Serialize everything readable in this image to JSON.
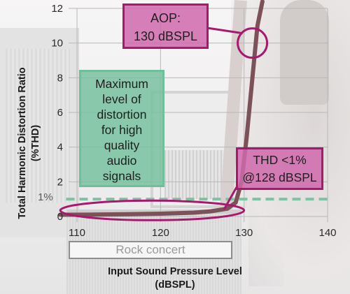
{
  "chart_data": {
    "type": "line",
    "xlabel": "Input Sound Pressure Level (dBSPL)",
    "xlabel_lines": [
      "Input Sound Pressure Level",
      "(dBSPL)"
    ],
    "ylabel": "Total Harmonic Distortion Ratio (%THD)",
    "ylabel_lines": [
      "Total Harmonic Distortion Ratio",
      "(%THD)"
    ],
    "xlim": [
      110,
      140
    ],
    "ylim": [
      0,
      12
    ],
    "x_ticks": [
      110,
      120,
      130,
      140
    ],
    "y_ticks": [
      0,
      2,
      4,
      6,
      8,
      10,
      12
    ],
    "grid": true,
    "series": [
      {
        "x": [
          108,
          112,
          116,
          120,
          124,
          126,
          128,
          129,
          129.7,
          130.3,
          131,
          131.6,
          132.2
        ],
        "y": [
          0.1,
          0.11,
          0.13,
          0.16,
          0.22,
          0.3,
          0.45,
          0.8,
          2.0,
          4.5,
          8.0,
          11.0,
          12.4
        ],
        "color": "#7d5158"
      }
    ],
    "reference_line": {
      "y": 1,
      "label": "1%",
      "color": "#7cc4a1"
    },
    "annotations": [
      {
        "id": "aop",
        "lines": [
          "AOP:",
          "130 dBSPL"
        ]
      },
      {
        "id": "thd",
        "lines": [
          "THD <1%",
          "@128 dBSPL"
        ]
      },
      {
        "id": "max",
        "lines": [
          "Maximum",
          "level of",
          "distortion",
          "for high",
          "quality",
          "audio",
          "signals"
        ]
      }
    ],
    "highlights": [
      {
        "shape": "circle",
        "x": 131,
        "y": 10,
        "color": "#a8196e"
      },
      {
        "shape": "ellipse",
        "x_range": [
          108,
          130
        ],
        "y": 0.35,
        "color": "#a8196e"
      }
    ]
  },
  "scene_tag": "Rock concert",
  "colors": {
    "curve": "#7d5158",
    "callout_pink": "#cf68ac",
    "callout_pink_border": "#a8196e",
    "callout_green": "#78c1a0",
    "reference": "#7cc4a1",
    "grid": "#b8b8b8"
  }
}
